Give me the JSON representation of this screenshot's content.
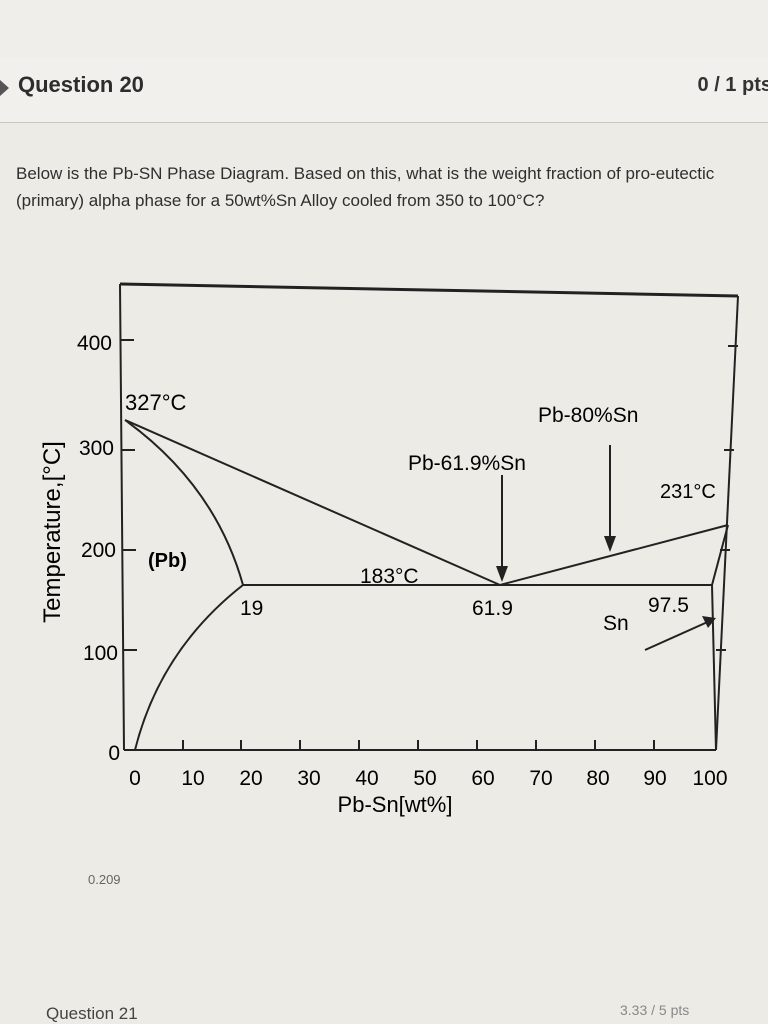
{
  "header": {
    "title": "Question 20",
    "points": "0 / 1 pts"
  },
  "question": {
    "text": "Below is the Pb-SN Phase Diagram.  Based on this, what is the weight fraction of pro-eutectic (primary) alpha phase for a 50wt%Sn Alloy cooled from 350 to 100°C?"
  },
  "diagram": {
    "y_axis_label": "Temperature,[°C]",
    "x_axis_label": "Pb-Sn[wt%]",
    "y_ticks": [
      "0",
      "100",
      "200",
      "300",
      "400"
    ],
    "x_ticks": [
      "0",
      "10",
      "20",
      "30",
      "40",
      "50",
      "60",
      "70",
      "80",
      "90",
      "100"
    ],
    "annotations": {
      "pb_melt": "327°C",
      "sn_melt": "231°C",
      "eutectic_temp": "183°C",
      "alpha_region": "(Pb)",
      "beta_region": "Sn",
      "alpha_limit": "19",
      "eutectic_comp": "61.9",
      "beta_limit": "97.5",
      "arrow_eutectic": "Pb-61.9%Sn",
      "arrow_80": "Pb-80%Sn"
    }
  },
  "answer": {
    "value": "0.209"
  },
  "footer": {
    "next_question": "Question 21",
    "score": "3.33 / 5 pts"
  }
}
